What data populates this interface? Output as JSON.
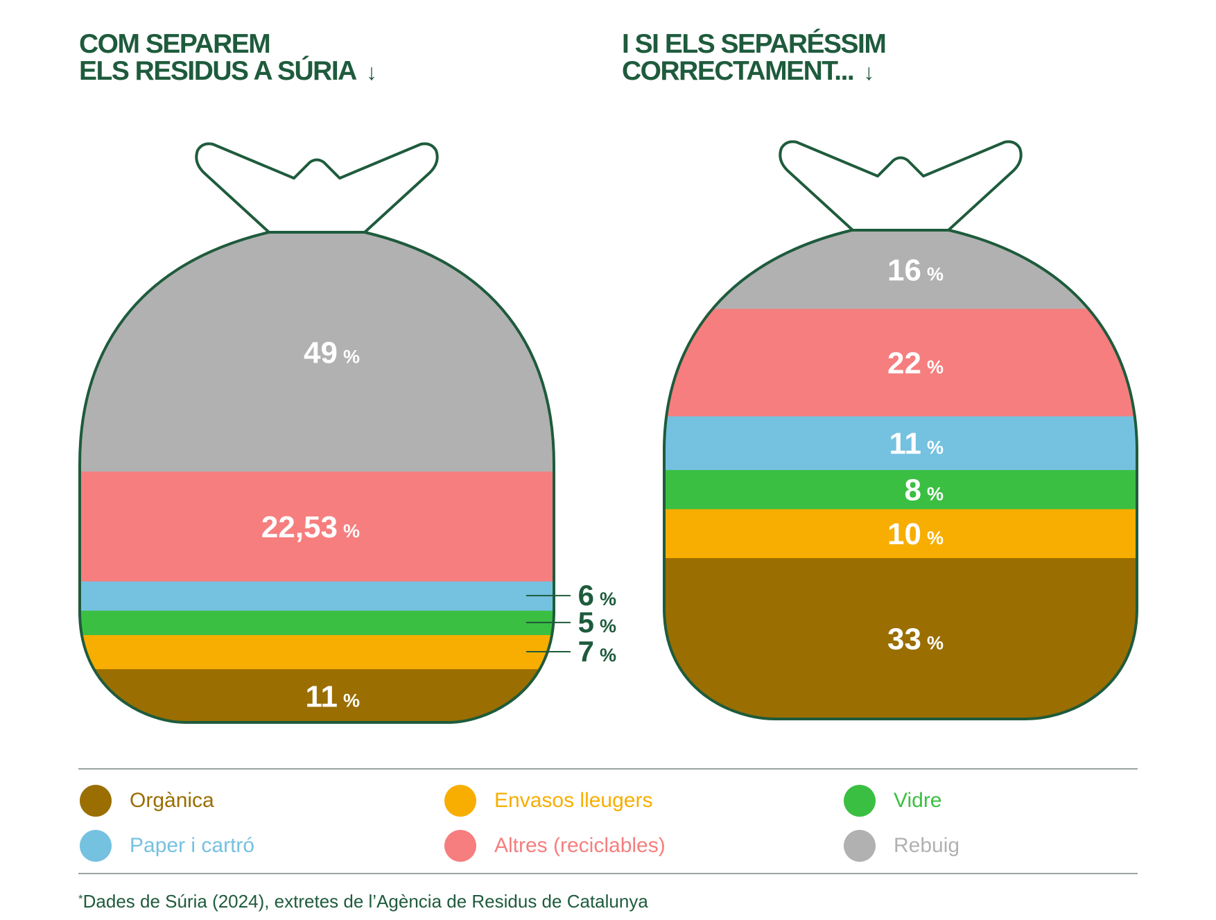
{
  "titles": {
    "left_line1": "COM SEPAREM",
    "left_line2": "ELS RESIDUS A SÚRIA",
    "right_line1": "I SI ELS SEPARÉSSIM",
    "right_line2": "CORRECTAMENT...",
    "arrow": "↓"
  },
  "legend": [
    {
      "label": "Orgànica",
      "color": "#9a6e00"
    },
    {
      "label": "Envasos lleugers",
      "color": "#f7ae00"
    },
    {
      "label": "Vidre",
      "color": "#3bbf42"
    },
    {
      "label": "Paper i cartró",
      "color": "#75c1e0"
    },
    {
      "label": "Altres (reciclables)",
      "color": "#f67e7e"
    },
    {
      "label": "Rebuig",
      "color": "#b1b1b1"
    }
  ],
  "footnote": {
    "star": "*",
    "text": "Dades de Súria (2024), extretes de l’Agència de Residus de Catalunya"
  },
  "colors": {
    "outline": "#1e5b3c",
    "label_inside": "#ffffff",
    "label_outside": "#1e5b3c",
    "Orgànica": "#9a6e00",
    "Envasos lleugers": "#f7ae00",
    "Vidre": "#3bbf42",
    "Paper i cartró": "#75c1e0",
    "Altres (reciclables)": "#f67e7e",
    "Rebuig": "#b1b1b1"
  },
  "chart_data": [
    {
      "type": "stacked-bag",
      "title": "COM SEPAREM ELS RESIDUS A SÚRIA",
      "unit": "%",
      "stack_order": "bottom-to-top",
      "categories": [
        "Orgànica",
        "Envasos lleugers",
        "Vidre",
        "Paper i cartró",
        "Altres (reciclables)",
        "Rebuig"
      ],
      "values": [
        11,
        7,
        5,
        6,
        22.53,
        49
      ],
      "labels": [
        "11",
        "7",
        "5",
        "6",
        "22,53",
        "49"
      ],
      "label_placement": [
        "inside",
        "outside",
        "outside",
        "outside",
        "inside",
        "inside"
      ]
    },
    {
      "type": "stacked-bag",
      "title": "I SI ELS SEPARÉSSIM CORRECTAMENT...",
      "unit": "%",
      "stack_order": "bottom-to-top",
      "categories": [
        "Orgànica",
        "Envasos lleugers",
        "Vidre",
        "Paper i cartró",
        "Altres (reciclables)",
        "Rebuig"
      ],
      "values": [
        33,
        10,
        8,
        11,
        22,
        16
      ],
      "labels": [
        "33",
        "10",
        "8",
        "11",
        "22",
        "16"
      ],
      "label_placement": [
        "inside",
        "inside",
        "inside",
        "inside",
        "inside",
        "inside"
      ]
    }
  ]
}
